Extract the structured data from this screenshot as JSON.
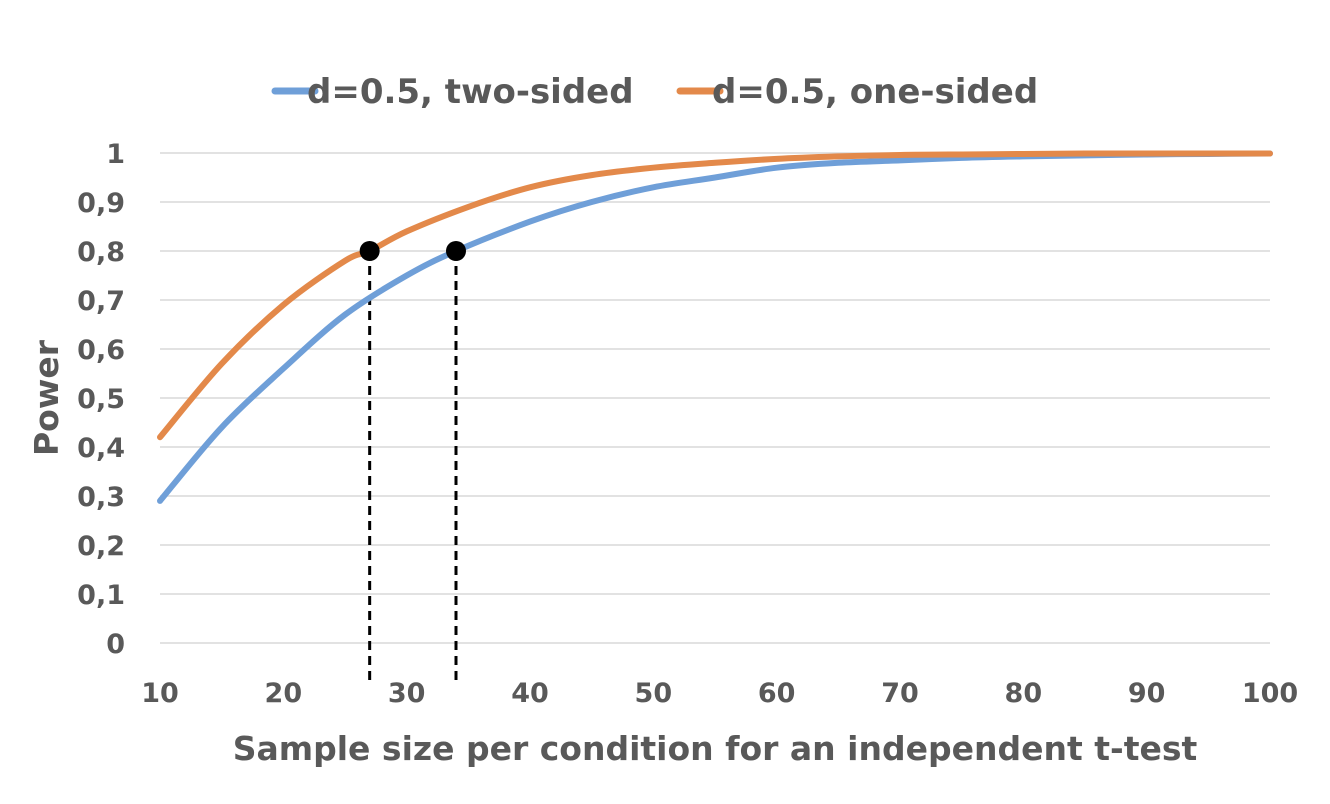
{
  "chart_data": {
    "type": "line",
    "title": "",
    "xlabel": "Sample size per condition for an independent t-test",
    "ylabel": "Power",
    "xlim": [
      10,
      100
    ],
    "ylim": [
      0,
      1
    ],
    "x_ticks": [
      "10",
      "20",
      "30",
      "40",
      "50",
      "60",
      "70",
      "80",
      "90",
      "100"
    ],
    "y_ticks": [
      "0",
      "0,1",
      "0,2",
      "0,3",
      "0,4",
      "0,5",
      "0,6",
      "0,7",
      "0,8",
      "0,9",
      "1"
    ],
    "grid": "horizontal",
    "legend_position": "top",
    "series": [
      {
        "name": "d=0.5, two-sided",
        "color": "#6f9fd8",
        "x": [
          10,
          15,
          20,
          25,
          30,
          34,
          40,
          45,
          50,
          55,
          60,
          65,
          70,
          75,
          80,
          85,
          90,
          95,
          100
        ],
        "y": [
          0.29,
          0.44,
          0.56,
          0.67,
          0.75,
          0.8,
          0.86,
          0.9,
          0.93,
          0.95,
          0.97,
          0.98,
          0.985,
          0.99,
          0.993,
          0.995,
          0.997,
          0.998,
          0.999
        ]
      },
      {
        "name": "d=0.5, one-sided",
        "color": "#e3894a",
        "x": [
          10,
          15,
          20,
          25,
          27,
          30,
          35,
          40,
          45,
          50,
          55,
          60,
          65,
          70,
          75,
          80,
          85,
          90,
          95,
          100
        ],
        "y": [
          0.42,
          0.57,
          0.69,
          0.78,
          0.8,
          0.84,
          0.89,
          0.93,
          0.955,
          0.97,
          0.98,
          0.988,
          0.993,
          0.996,
          0.997,
          0.998,
          0.999,
          0.999,
          0.999,
          0.999
        ]
      }
    ],
    "annotations": [
      {
        "x": 27,
        "y": 0.8,
        "series": "d=0.5, one-sided"
      },
      {
        "x": 34,
        "y": 0.8,
        "series": "d=0.5, two-sided"
      }
    ]
  }
}
